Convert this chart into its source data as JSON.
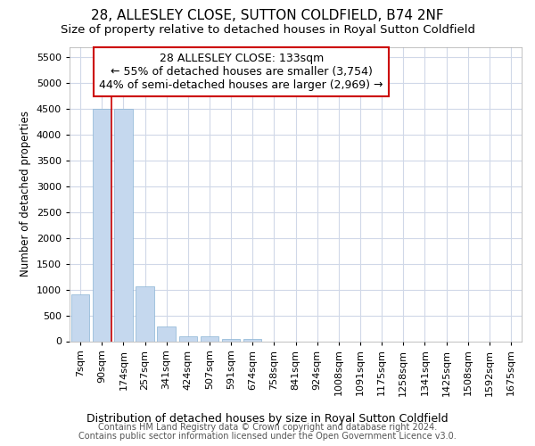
{
  "title1": "28, ALLESLEY CLOSE, SUTTON COLDFIELD, B74 2NF",
  "title2": "Size of property relative to detached houses in Royal Sutton Coldfield",
  "xlabel": "Distribution of detached houses by size in Royal Sutton Coldfield",
  "ylabel": "Number of detached properties",
  "footer1": "Contains HM Land Registry data © Crown copyright and database right 2024.",
  "footer2": "Contains public sector information licensed under the Open Government Licence v3.0.",
  "annotation_title": "28 ALLESLEY CLOSE: 133sqm",
  "annotation_line1": "← 55% of detached houses are smaller (3,754)",
  "annotation_line2": "44% of semi-detached houses are larger (2,969) →",
  "bar_labels": [
    "7sqm",
    "90sqm",
    "174sqm",
    "257sqm",
    "341sqm",
    "424sqm",
    "507sqm",
    "591sqm",
    "674sqm",
    "758sqm",
    "841sqm",
    "924sqm",
    "1008sqm",
    "1091sqm",
    "1175sqm",
    "1258sqm",
    "1341sqm",
    "1425sqm",
    "1508sqm",
    "1592sqm",
    "1675sqm"
  ],
  "bar_values": [
    900,
    4500,
    4500,
    1060,
    280,
    100,
    100,
    50,
    50,
    0,
    0,
    0,
    0,
    0,
    0,
    0,
    0,
    0,
    0,
    0,
    0
  ],
  "bar_color": "#c5d8ee",
  "bar_edge_color": "#8ab4d4",
  "red_line_x": 1.45,
  "ylim": [
    0,
    5700
  ],
  "yticks": [
    0,
    500,
    1000,
    1500,
    2000,
    2500,
    3000,
    3500,
    4000,
    4500,
    5000,
    5500
  ],
  "bg_color": "#ffffff",
  "plot_bg_color": "#ffffff",
  "grid_color": "#d0d8e8",
  "annotation_box_color": "#ffffff",
  "annotation_box_edge": "#cc0000",
  "title1_fontsize": 11,
  "title2_fontsize": 9.5,
  "xlabel_fontsize": 9,
  "ylabel_fontsize": 8.5,
  "tick_fontsize": 8,
  "annotation_fontsize": 9,
  "footer_fontsize": 7
}
